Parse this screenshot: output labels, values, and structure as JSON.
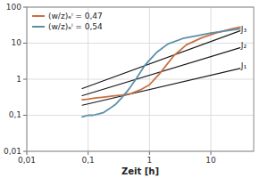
{
  "chart_data": {
    "type": "line",
    "xlabel": "Zeit [h]",
    "log": true,
    "grid": true,
    "legend": "upper left",
    "xlim": [
      0.01,
      50
    ],
    "ylim": [
      0.01,
      100
    ],
    "xticks": [
      {
        "value": 0.01,
        "label": "0,01"
      },
      {
        "value": 0.1,
        "label": "0,1"
      },
      1,
      10
    ],
    "yticks": [
      {
        "value": 0.01,
        "label": "0,01"
      },
      {
        "value": 0.1,
        "label": "0,1"
      },
      1,
      10,
      100
    ],
    "series": [
      {
        "color": "#1a1a1a",
        "x": [
          0.08,
          30.0
        ],
        "values": [
          0.55,
          22.0
        ]
      },
      {
        "color": "#1a1a1a",
        "x": [
          0.08,
          30.0
        ],
        "values": [
          0.35,
          7.5
        ]
      },
      {
        "color": "#1a1a1a",
        "x": [
          0.08,
          30.0
        ],
        "values": [
          0.19,
          2.0
        ]
      },
      {
        "name": "(w/z)ₑⁱ = 0,47",
        "color": "#c87040",
        "x": [
          0.08,
          0.1,
          0.13,
          0.18,
          0.25,
          0.35,
          0.5,
          0.7,
          1.0,
          1.5,
          2.5,
          4.0,
          7.0,
          12.0,
          20.0,
          30.0
        ],
        "values": [
          0.27,
          0.28,
          0.3,
          0.32,
          0.34,
          0.36,
          0.4,
          0.5,
          0.7,
          1.5,
          4.5,
          9.0,
          14.0,
          19.0,
          24.0,
          28.0
        ]
      },
      {
        "name": "(w/z)ₑⁱ = 0,54",
        "color": "#5b8fa8",
        "x": [
          0.08,
          0.1,
          0.12,
          0.15,
          0.18,
          0.22,
          0.28,
          0.35,
          0.45,
          0.6,
          0.85,
          1.3,
          2.0,
          3.5,
          6.0,
          10.0,
          18.0,
          30.0
        ],
        "values": [
          0.09,
          0.1,
          0.1,
          0.11,
          0.12,
          0.15,
          0.2,
          0.3,
          0.5,
          1.0,
          2.5,
          5.5,
          9.5,
          13.5,
          16.0,
          19.0,
          22.0,
          25.0
        ]
      }
    ],
    "annotations": [
      {
        "text": "J₃",
        "x": 31,
        "y": 24
      },
      {
        "text": "J₂",
        "x": 31,
        "y": 8.5
      },
      {
        "text": "J₁",
        "x": 31,
        "y": 2.3
      }
    ]
  }
}
